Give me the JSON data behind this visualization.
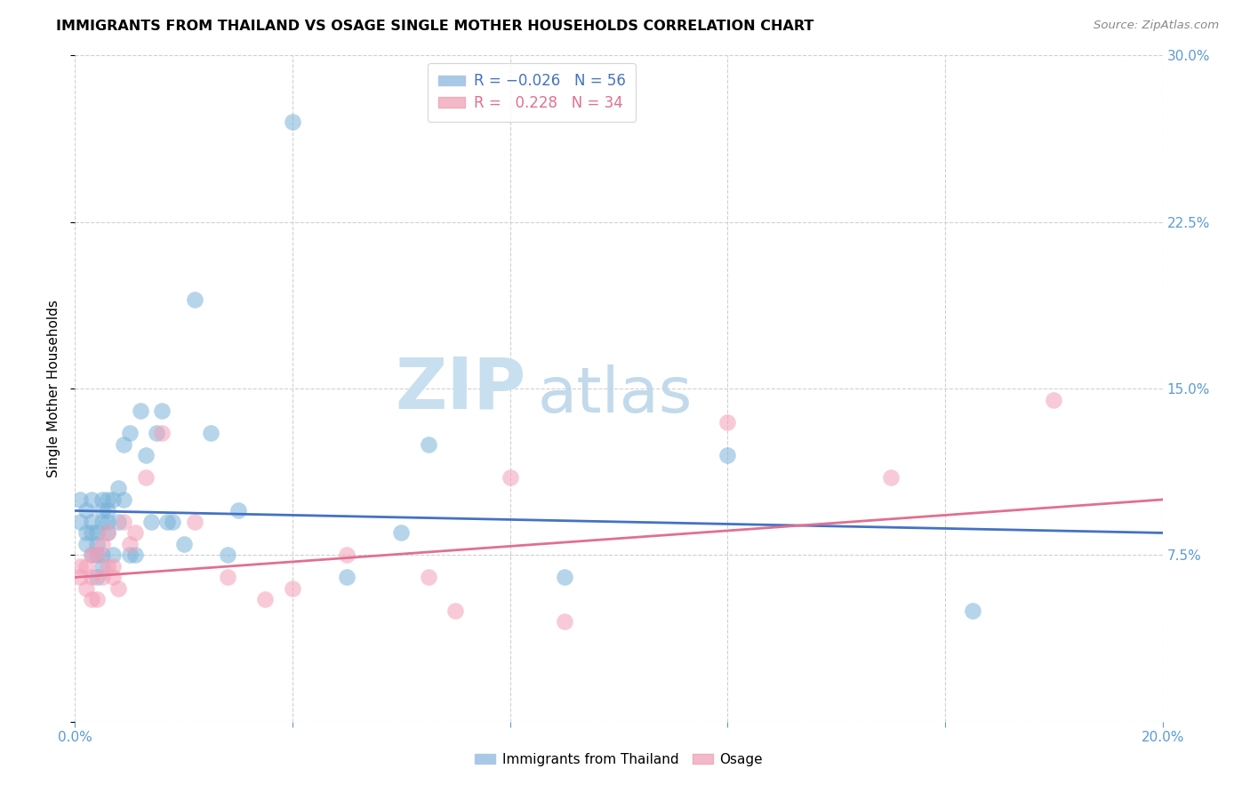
{
  "title": "IMMIGRANTS FROM THAILAND VS OSAGE SINGLE MOTHER HOUSEHOLDS CORRELATION CHART",
  "source": "Source: ZipAtlas.com",
  "ylabel": "Single Mother Households",
  "xlim": [
    0.0,
    0.2
  ],
  "ylim": [
    0.0,
    0.3
  ],
  "blue_color": "#7ab3d9",
  "pink_color": "#f4a0b8",
  "blue_line_color": "#4472c4",
  "pink_line_color": "#e07090",
  "blue_legend_color": "#a8c8e8",
  "pink_legend_color": "#f4b8c8",
  "watermark_zip_color": "#c8dff0",
  "watermark_atlas_color": "#b8d4e8",
  "grid_color": "#d0d0d0",
  "blue_line_y0": 0.095,
  "blue_line_y1": 0.085,
  "pink_line_y0": 0.065,
  "pink_line_y1": 0.1,
  "thailand_x": [
    0.001,
    0.001,
    0.002,
    0.002,
    0.002,
    0.003,
    0.003,
    0.003,
    0.003,
    0.004,
    0.004,
    0.004,
    0.004,
    0.005,
    0.005,
    0.005,
    0.005,
    0.005,
    0.006,
    0.006,
    0.006,
    0.006,
    0.007,
    0.007,
    0.008,
    0.008,
    0.009,
    0.009,
    0.01,
    0.01,
    0.011,
    0.012,
    0.013,
    0.014,
    0.015,
    0.016,
    0.017,
    0.018,
    0.02,
    0.022,
    0.025,
    0.028,
    0.03,
    0.04,
    0.05,
    0.06,
    0.065,
    0.09,
    0.12,
    0.165
  ],
  "thailand_y": [
    0.09,
    0.1,
    0.08,
    0.085,
    0.095,
    0.075,
    0.09,
    0.1,
    0.085,
    0.065,
    0.08,
    0.085,
    0.075,
    0.07,
    0.075,
    0.09,
    0.095,
    0.1,
    0.085,
    0.09,
    0.1,
    0.095,
    0.075,
    0.1,
    0.09,
    0.105,
    0.1,
    0.125,
    0.13,
    0.075,
    0.075,
    0.14,
    0.12,
    0.09,
    0.13,
    0.14,
    0.09,
    0.09,
    0.08,
    0.19,
    0.13,
    0.075,
    0.095,
    0.27,
    0.065,
    0.085,
    0.125,
    0.065,
    0.12,
    0.05
  ],
  "osage_x": [
    0.001,
    0.001,
    0.002,
    0.002,
    0.003,
    0.003,
    0.003,
    0.004,
    0.004,
    0.005,
    0.005,
    0.006,
    0.006,
    0.007,
    0.007,
    0.008,
    0.009,
    0.01,
    0.011,
    0.013,
    0.016,
    0.022,
    0.028,
    0.035,
    0.04,
    0.05,
    0.065,
    0.07,
    0.08,
    0.09,
    0.12,
    0.15,
    0.18
  ],
  "osage_y": [
    0.065,
    0.07,
    0.06,
    0.07,
    0.055,
    0.065,
    0.075,
    0.055,
    0.075,
    0.065,
    0.08,
    0.07,
    0.085,
    0.065,
    0.07,
    0.06,
    0.09,
    0.08,
    0.085,
    0.11,
    0.13,
    0.09,
    0.065,
    0.055,
    0.06,
    0.075,
    0.065,
    0.05,
    0.11,
    0.045,
    0.135,
    0.11,
    0.145
  ]
}
